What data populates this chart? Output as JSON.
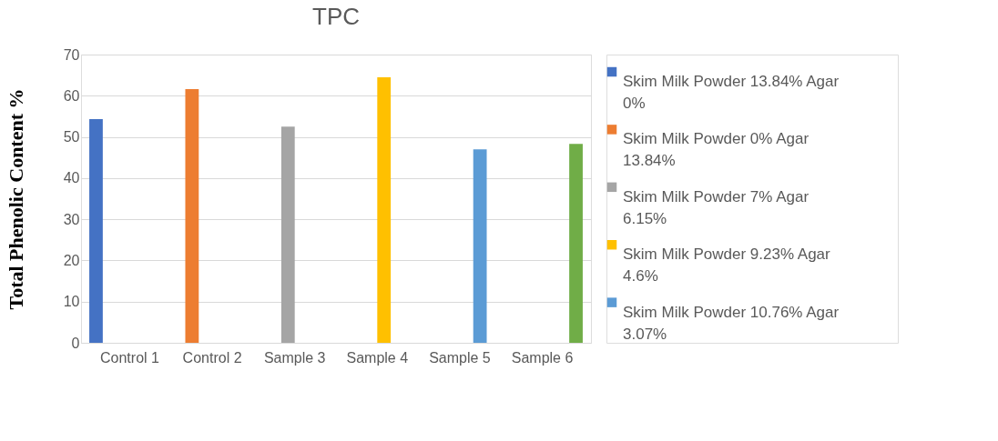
{
  "chart_data": {
    "type": "bar",
    "title": "TPC",
    "ylabel": "Total Phenolic Content %",
    "categories": [
      "Control 1",
      "Control 2",
      "Sample 3",
      "Sample 4",
      "Sample 5",
      "Sample 6"
    ],
    "series": [
      {
        "name": "Skim Milk Powder 13.84% Agar 0%",
        "color": "#4472c4",
        "values": [
          54.3,
          null,
          null,
          null,
          null,
          null
        ]
      },
      {
        "name": "Skim Milk Powder 0% Agar 13.84%",
        "color": "#ed7d31",
        "values": [
          null,
          61.6,
          null,
          null,
          null,
          null
        ]
      },
      {
        "name": "Skim Milk Powder 7% Agar 6.15%",
        "color": "#a5a5a5",
        "values": [
          null,
          null,
          52.5,
          null,
          null,
          null
        ]
      },
      {
        "name": "Skim Milk Powder 9.23% Agar 4.6%",
        "color": "#ffc000",
        "values": [
          null,
          null,
          null,
          64.5,
          null,
          null
        ]
      },
      {
        "name": "Skim Milk Powder 10.76% Agar 3.07%",
        "color": "#5b9bd5",
        "values": [
          null,
          null,
          null,
          null,
          47.0,
          null
        ]
      },
      {
        "color": "#70ad47",
        "values": [
          null,
          null,
          null,
          null,
          null,
          48.3
        ]
      }
    ],
    "ylim": [
      0,
      70
    ],
    "yticks": [
      0,
      10,
      20,
      30,
      40,
      50,
      60,
      70
    ],
    "grid": "y",
    "legend": "right"
  }
}
